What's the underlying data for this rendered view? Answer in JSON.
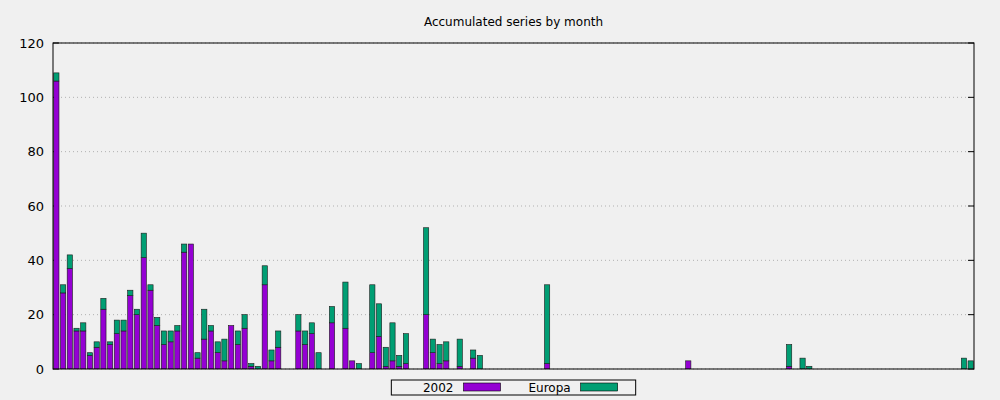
{
  "chart_data": {
    "type": "bar",
    "title": "Accumulated series by month",
    "stacked": true,
    "grid": true,
    "legend": "bottom",
    "ylim": [
      0,
      120
    ],
    "yticks": [
      0,
      20,
      40,
      60,
      80,
      100,
      120
    ],
    "categories": [
      null,
      null,
      null,
      null,
      null,
      null,
      null,
      null,
      null,
      null,
      null,
      null,
      null,
      null,
      null,
      null,
      null,
      null,
      null,
      null,
      null,
      null,
      null,
      null,
      null,
      null,
      null,
      null,
      null,
      null,
      null,
      null,
      null,
      null,
      null,
      null,
      null,
      null,
      null,
      null,
      null,
      null,
      null,
      null,
      null,
      null,
      null,
      null,
      null,
      null,
      null,
      null,
      null,
      null,
      null,
      null,
      null,
      null,
      null,
      null,
      null,
      null,
      null,
      null,
      null,
      null,
      null,
      null,
      null,
      null,
      null,
      null,
      null,
      null,
      null,
      null,
      null,
      null,
      null,
      null,
      null,
      null,
      null,
      null,
      null,
      null,
      null,
      null,
      null,
      null,
      null,
      null,
      null,
      null,
      null,
      null,
      null,
      null,
      null,
      null,
      null,
      null,
      null,
      null,
      null,
      null,
      null,
      null,
      null,
      null,
      null,
      null,
      null,
      null,
      null,
      null,
      null,
      null,
      null,
      null,
      null,
      null,
      null,
      null,
      null,
      null,
      null,
      null,
      null,
      null,
      null,
      null,
      null,
      null,
      null,
      null,
      null
    ],
    "series": [
      {
        "name": "2002",
        "color": "#9400d3",
        "values": [
          106,
          28,
          37,
          14,
          14,
          5,
          8,
          22,
          9,
          13,
          14,
          27,
          20,
          41,
          29,
          16,
          9,
          10,
          14,
          43,
          46,
          4,
          11,
          14,
          6,
          3,
          16,
          9,
          15,
          1,
          0,
          31,
          3,
          8,
          0,
          0,
          14,
          9,
          13,
          0,
          0,
          17,
          0,
          15,
          3,
          0,
          0,
          6,
          12,
          1,
          3,
          1,
          2,
          0,
          0,
          20,
          6,
          2,
          3,
          0,
          1,
          0,
          4,
          0,
          0,
          0,
          0,
          0,
          0,
          0,
          0,
          0,
          0,
          2,
          0,
          0,
          0,
          0,
          0,
          0,
          0,
          0,
          0,
          0,
          0,
          0,
          0,
          0,
          0,
          0,
          0,
          0,
          0,
          0,
          3,
          0,
          0,
          0,
          0,
          0,
          0,
          0,
          0,
          0,
          0,
          0,
          0,
          0,
          0,
          1,
          0,
          0,
          0,
          0,
          0,
          0,
          0,
          0,
          0,
          0,
          0,
          0,
          0,
          0,
          0,
          0,
          0,
          0,
          0,
          0,
          0,
          0,
          0,
          0,
          0,
          0,
          0
        ]
      },
      {
        "name": "Europa",
        "color": "#009e73",
        "values": [
          3,
          3,
          5,
          1,
          3,
          1,
          2,
          4,
          1,
          5,
          4,
          2,
          2,
          9,
          2,
          3,
          5,
          4,
          2,
          3,
          0,
          2,
          11,
          2,
          4,
          8,
          0,
          5,
          5,
          1,
          1,
          7,
          4,
          6,
          0,
          0,
          6,
          5,
          4,
          6,
          0,
          6,
          0,
          17,
          0,
          2,
          0,
          25,
          12,
          7,
          14,
          4,
          11,
          0,
          0,
          32,
          5,
          7,
          7,
          0,
          10,
          0,
          3,
          5,
          0,
          0,
          0,
          0,
          0,
          0,
          0,
          0,
          0,
          29,
          0,
          0,
          0,
          0,
          0,
          0,
          0,
          0,
          0,
          0,
          0,
          0,
          0,
          0,
          0,
          0,
          0,
          0,
          0,
          0,
          0,
          0,
          0,
          0,
          0,
          0,
          0,
          0,
          0,
          0,
          0,
          0,
          0,
          0,
          0,
          8,
          0,
          4,
          1,
          0,
          0,
          0,
          0,
          0,
          0,
          0,
          0,
          0,
          0,
          0,
          0,
          0,
          0,
          0,
          0,
          0,
          0,
          0,
          0,
          0,
          0,
          4,
          3
        ]
      }
    ]
  }
}
